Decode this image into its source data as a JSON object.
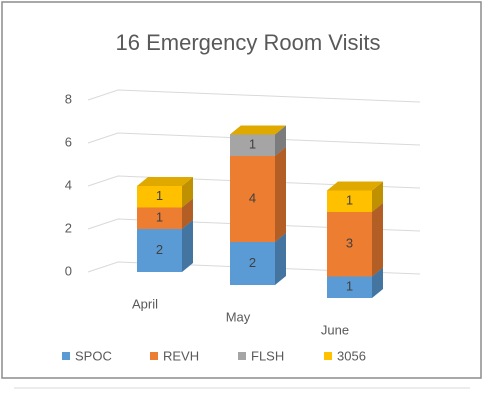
{
  "chart_data": {
    "type": "bar3d-stacked",
    "title": "16 Emergency Room Visits",
    "categories": [
      "April",
      "May",
      "June"
    ],
    "series": [
      {
        "name": "SPOC",
        "color": "#5b9bd5",
        "values": [
          2,
          2,
          1
        ]
      },
      {
        "name": "REVH",
        "color": "#ed7d31",
        "values": [
          1,
          4,
          3
        ]
      },
      {
        "name": "FLSH",
        "color": "#a5a5a5",
        "values": [
          0,
          1,
          0
        ]
      },
      {
        "name": "3056",
        "color": "#ffc000",
        "values": [
          1,
          0,
          1
        ]
      }
    ],
    "ylim": [
      0,
      8
    ],
    "yticks": [
      0,
      2,
      4,
      6,
      8
    ],
    "grid": true,
    "legend": "bottom"
  }
}
